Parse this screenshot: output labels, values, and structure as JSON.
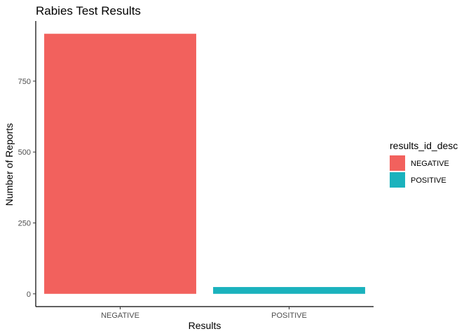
{
  "chart_data": {
    "type": "bar",
    "title": "Rabies Test Results",
    "xlabel": "Results",
    "ylabel": "Number of Reports",
    "categories": [
      "NEGATIVE",
      "POSITIVE"
    ],
    "values": [
      917,
      24
    ],
    "colors": [
      "#F8766D",
      "#00BFC4"
    ],
    "bar_fill_colors": [
      "#F2615D",
      "#1AB2BD"
    ],
    "yticks": [
      0,
      250,
      500,
      750
    ],
    "ylim": [
      -45,
      962
    ],
    "grid": false,
    "legend": {
      "title": "results_id_desc",
      "position": "right",
      "entries": [
        "NEGATIVE",
        "POSITIVE"
      ]
    }
  }
}
